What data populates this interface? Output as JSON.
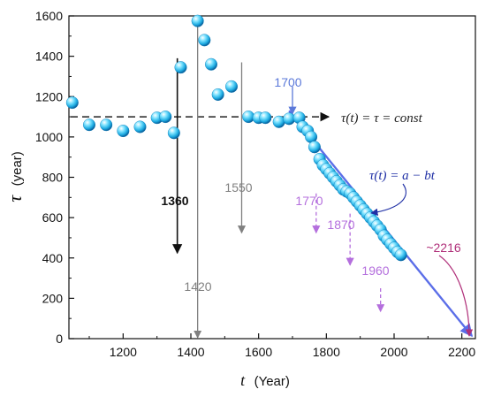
{
  "chart_data": {
    "type": "scatter",
    "xlabel_symbol": "t",
    "xlabel_unit": "(Year)",
    "ylabel_symbol": "τ",
    "ylabel_unit": "(year)",
    "xlim": [
      1040,
      2240
    ],
    "ylim": [
      0,
      1600
    ],
    "xticks": [
      1200,
      1400,
      1600,
      1800,
      2000,
      2200
    ],
    "yticks": [
      0,
      200,
      400,
      600,
      800,
      1000,
      1200,
      1400,
      1600
    ],
    "grid": false,
    "points": {
      "x": [
        1050,
        1100,
        1150,
        1200,
        1250,
        1300,
        1325,
        1350,
        1370,
        1420,
        1440,
        1460,
        1480,
        1520,
        1570,
        1600,
        1620,
        1660,
        1690,
        1720,
        1730,
        1745,
        1755,
        1765,
        1780,
        1790,
        1800,
        1810,
        1820,
        1830,
        1840,
        1850,
        1860,
        1870,
        1880,
        1890,
        1900,
        1910,
        1920,
        1930,
        1940,
        1950,
        1960,
        1970,
        1980,
        1990,
        2000,
        2010,
        2020
      ],
      "y": [
        1170,
        1060,
        1060,
        1030,
        1050,
        1095,
        1100,
        1020,
        1345,
        1575,
        1480,
        1360,
        1210,
        1250,
        1100,
        1095,
        1095,
        1075,
        1090,
        1095,
        1050,
        1030,
        1000,
        950,
        890,
        860,
        840,
        820,
        800,
        780,
        760,
        740,
        730,
        720,
        700,
        680,
        660,
        640,
        620,
        600,
        580,
        560,
        540,
        510,
        490,
        470,
        450,
        430,
        415
      ]
    },
    "constant_line": {
      "x": [
        1040,
        1750
      ],
      "y": [
        1100,
        1100
      ],
      "label": "τ(t) = τ = const"
    },
    "trend_line": {
      "x": [
        1690,
        2235
      ],
      "y": [
        1130,
        0
      ],
      "label": "τ(t) = a − bt"
    },
    "annotations": [
      {
        "label": "1360",
        "x": 1360,
        "y_from": 1390,
        "y_to": 420,
        "color": "#111111",
        "bold": true,
        "dashed": false
      },
      {
        "label": "1420",
        "x": 1420,
        "y_from": 1590,
        "y_to": 0,
        "color": "#808080",
        "bold": false,
        "dashed": false
      },
      {
        "label": "1550",
        "x": 1550,
        "y_from": 1370,
        "y_to": 520,
        "color": "#808080",
        "bold": false,
        "dashed": false
      },
      {
        "label": "1700",
        "x": 1700,
        "y_from": 1250,
        "y_to": 1110,
        "color": "#5b79d9",
        "bold": false,
        "dashed": false
      },
      {
        "label": "1770",
        "x": 1770,
        "y_from": 720,
        "y_to": 520,
        "color": "#b46fdd",
        "bold": false,
        "dashed": true
      },
      {
        "label": "1870",
        "x": 1870,
        "y_from": 620,
        "y_to": 360,
        "color": "#b46fdd",
        "bold": false,
        "dashed": true
      },
      {
        "label": "1960",
        "x": 1960,
        "y_from": 250,
        "y_to": 130,
        "color": "#b46fdd",
        "bold": false,
        "dashed": true
      },
      {
        "label": "~2216",
        "x": 2216,
        "y_from": 300,
        "y_to": 0,
        "color": "#b0307a",
        "bold": false,
        "dashed": false
      }
    ],
    "colors": {
      "point": "#31c6ee",
      "trend": "#5b6ee8",
      "formula": "#1f2fa5"
    }
  }
}
